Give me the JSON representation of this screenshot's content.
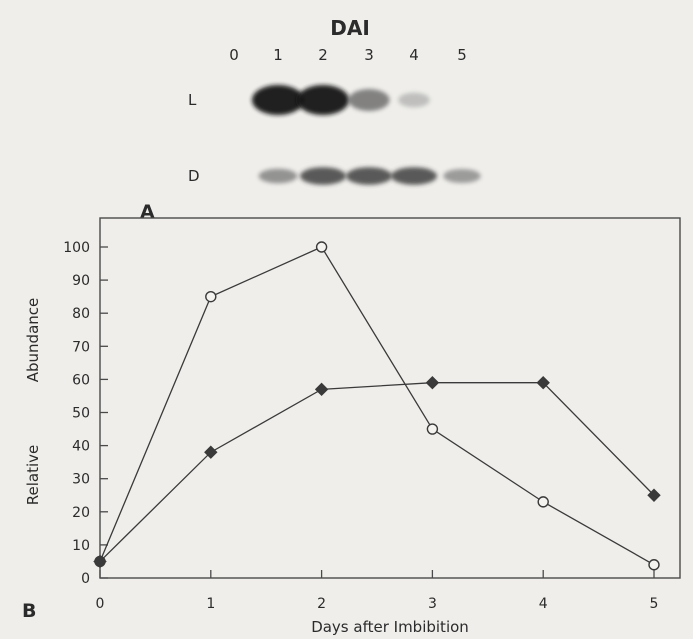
{
  "blot": {
    "header": "DAI",
    "lane_labels": [
      "0",
      "1",
      "2",
      "3",
      "4",
      "5"
    ],
    "rows": [
      {
        "label": "L",
        "intensity": [
          0,
          1.0,
          1.0,
          0.55,
          0.15,
          0
        ]
      },
      {
        "label": "D",
        "intensity": [
          0,
          0.45,
          0.75,
          0.75,
          0.75,
          0.4
        ]
      }
    ]
  },
  "panels": {
    "top": "A",
    "bottom": "B"
  },
  "chart_data": {
    "type": "line",
    "x": [
      0,
      1,
      2,
      3,
      4,
      5
    ],
    "series": [
      {
        "values": [
          5,
          85,
          100,
          45,
          23,
          4
        ],
        "marker": "open-circle",
        "color": "#3a3a3a"
      },
      {
        "values": [
          5,
          38,
          57,
          59,
          59,
          25
        ],
        "marker": "filled-diamond",
        "color": "#3a3a3a"
      }
    ],
    "title": "",
    "xlabel": "Days after Imbibition",
    "ylabel_parts": [
      "Relative",
      "Abundance"
    ],
    "xticks": [
      "0",
      "1",
      "2",
      "3",
      "4",
      "5"
    ],
    "yticks": [
      "0",
      "10",
      "20",
      "30",
      "40",
      "50",
      "60",
      "70",
      "80",
      "90",
      "100"
    ],
    "xlim": [
      0,
      5
    ],
    "ylim": [
      0,
      100
    ],
    "grid": false
  }
}
